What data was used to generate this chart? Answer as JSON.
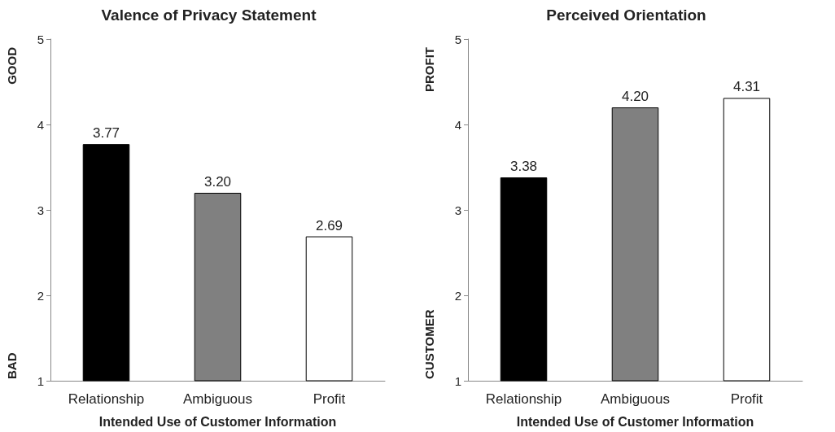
{
  "chart_data": [
    {
      "type": "bar",
      "title": "Valence of Privacy Statement",
      "xlabel": "Intended Use of Customer Information",
      "annotations": [
        "GOOD",
        "BAD"
      ],
      "categories": [
        "Relationship",
        "Ambiguous",
        "Profit"
      ],
      "values": [
        3.77,
        3.2,
        2.69
      ],
      "colors": [
        "#000000",
        "#808080",
        "#ffffff"
      ],
      "value_labels": [
        "3.77",
        "3.20",
        "2.69"
      ],
      "ylim": [
        1,
        5
      ],
      "yticks": [
        1,
        2,
        3,
        4,
        5
      ]
    },
    {
      "type": "bar",
      "title": "Perceived Orientation",
      "xlabel": "Intended Use of Customer Information",
      "annotations": [
        "PROFIT",
        "CUSTOMER"
      ],
      "categories": [
        "Relationship",
        "Ambiguous",
        "Profit"
      ],
      "values": [
        3.38,
        4.2,
        4.31
      ],
      "colors": [
        "#000000",
        "#808080",
        "#ffffff"
      ],
      "value_labels": [
        "3.38",
        "4.20",
        "4.31"
      ],
      "ylim": [
        1,
        5
      ],
      "yticks": [
        1,
        2,
        3,
        4,
        5
      ]
    }
  ]
}
